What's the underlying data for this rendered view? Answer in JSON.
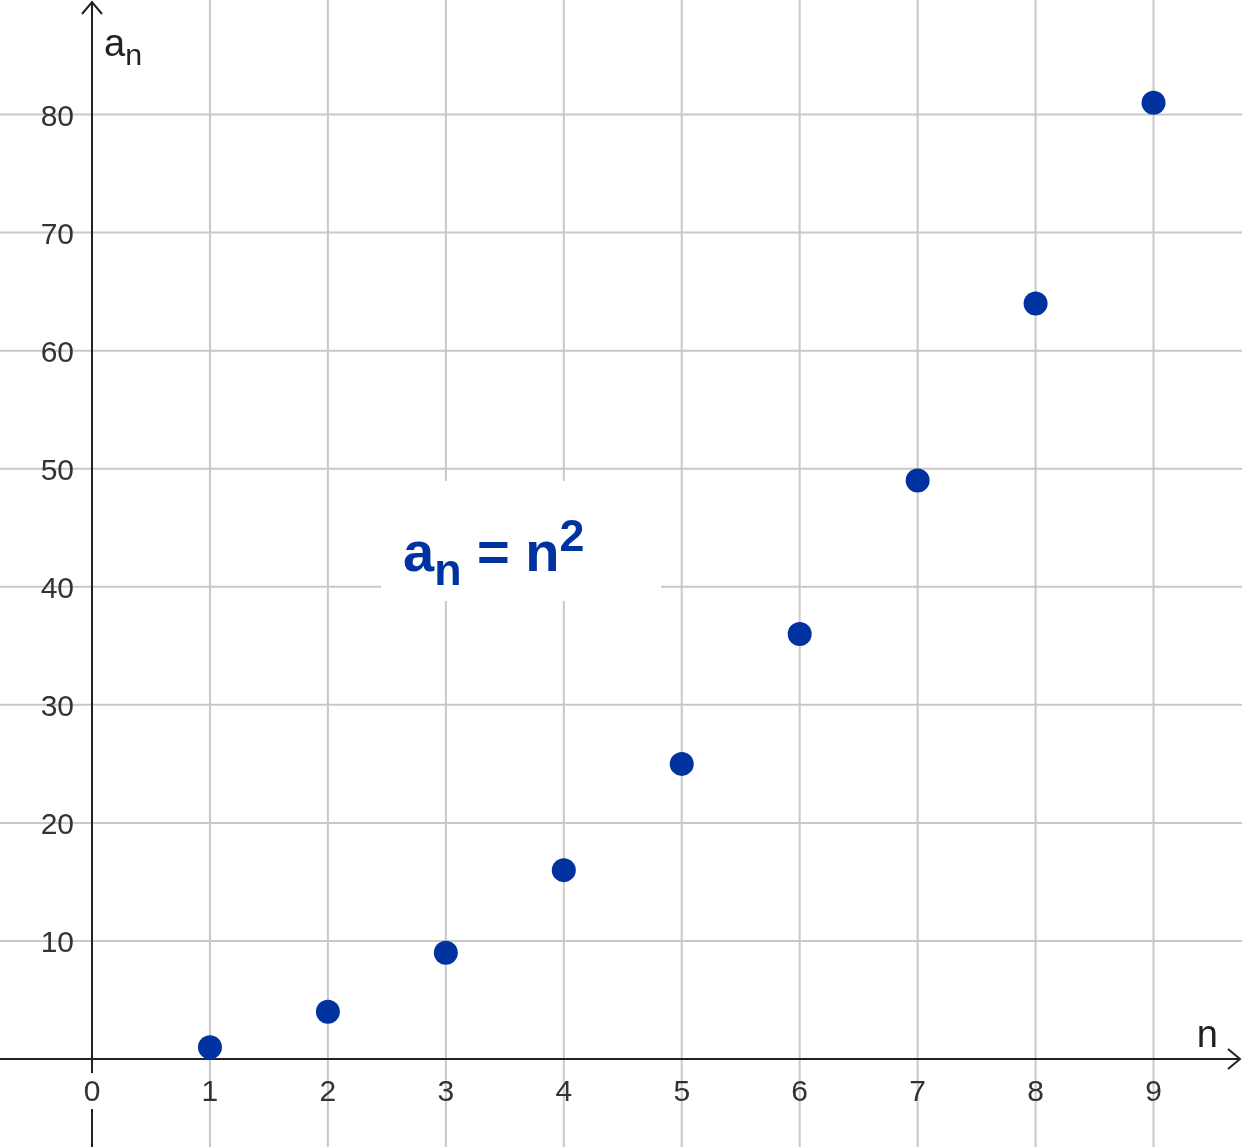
{
  "chart_data": {
    "type": "scatter",
    "xlabel": "n",
    "ylabel": "a$_{n}$",
    "x": [
      1,
      2,
      3,
      4,
      5,
      6,
      7,
      8,
      9
    ],
    "series": [
      {
        "color": "#0033a0",
        "values": [
          1,
          4,
          9,
          16,
          25,
          36,
          49,
          64,
          81
        ]
      }
    ],
    "xlim": [
      -0.78,
      9.75
    ],
    "ylim": [
      -7.45,
      89.7
    ],
    "xticks": [
      0,
      1,
      2,
      3,
      4,
      5,
      6,
      7,
      8,
      9
    ],
    "yticks": [
      10,
      20,
      30,
      40,
      50,
      60,
      70,
      80
    ],
    "grid": true,
    "marker": "circle",
    "annotations": [
      "a$_{n}$ = n$^{2}$"
    ]
  }
}
